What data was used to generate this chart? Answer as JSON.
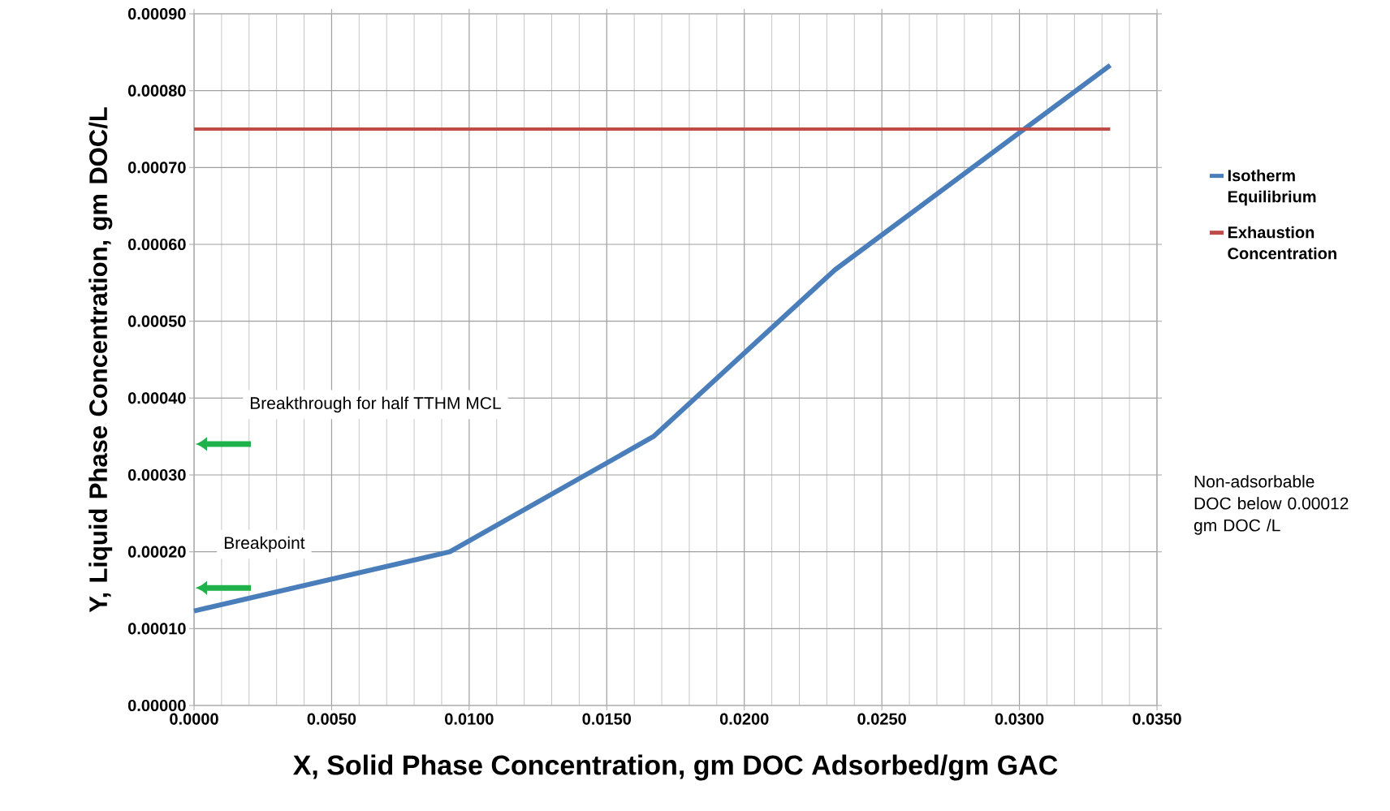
{
  "chart_data": {
    "type": "line",
    "xlabel": "X, Solid Phase Concentration, gm DOC Adsorbed/gm GAC",
    "ylabel": "Y, Liquid Phase Concentration, gm DOC/L",
    "series": [
      {
        "name": "Isotherm Equilibrium",
        "color": "#4a7ebb",
        "x": [
          0,
          0.0093,
          0.0167,
          0.0233,
          0.0333
        ],
        "values": [
          0.000123,
          0.0002,
          0.00035,
          0.000567,
          0.000833
        ]
      },
      {
        "name": "Exhaustion Concentration",
        "color": "#be4b48",
        "x": [
          0,
          0.0333
        ],
        "values": [
          0.00075,
          0.00075
        ]
      }
    ],
    "xlim": [
      0,
      0.035
    ],
    "ylim": [
      0,
      0.0009
    ],
    "xticks": [
      {
        "value": 0,
        "label": "0.0000"
      },
      {
        "value": 0.005,
        "label": "0.0050"
      },
      {
        "value": 0.01,
        "label": "0.0100"
      },
      {
        "value": 0.015,
        "label": "0.0150"
      },
      {
        "value": 0.02,
        "label": "0.0200"
      },
      {
        "value": 0.025,
        "label": "0.0250"
      },
      {
        "value": 0.03,
        "label": "0.0300"
      },
      {
        "value": 0.035,
        "label": "0.0350"
      }
    ],
    "yticks": [
      {
        "value": 0,
        "label": "0.00000"
      },
      {
        "value": 0.0001,
        "label": "0.00010"
      },
      {
        "value": 0.0002,
        "label": "0.00020"
      },
      {
        "value": 0.0003,
        "label": "0.00030"
      },
      {
        "value": 0.0004,
        "label": "0.00040"
      },
      {
        "value": 0.0005,
        "label": "0.00050"
      },
      {
        "value": 0.0006,
        "label": "0.00060"
      },
      {
        "value": 0.0007,
        "label": "0.00070"
      },
      {
        "value": 0.0008,
        "label": "0.00080"
      },
      {
        "value": 0.0009,
        "label": "0.00090"
      }
    ],
    "grid": true,
    "legend": "right",
    "annotations": [
      "Breakthrough for half TTHM MCL",
      "Breakpoint",
      "Non-adsorbable DOC below 0.00012 gm DOC /L"
    ]
  }
}
